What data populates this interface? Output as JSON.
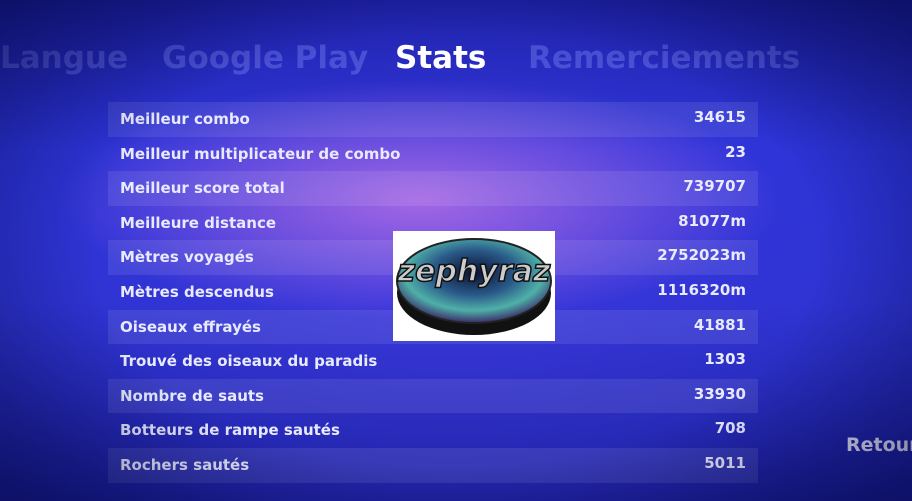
{
  "tabs": [
    "Langue",
    "Google Play",
    "Stats",
    "Remerciements"
  ],
  "active_tab": "Stats",
  "stats": [
    {
      "label": "Meilleur combo",
      "value": "34615"
    },
    {
      "label": "Meilleur multiplicateur de combo",
      "value": "23"
    },
    {
      "label": "Meilleur score total",
      "value": "739707"
    },
    {
      "label": "Meilleure distance",
      "value": "81077m"
    },
    {
      "label": "Mètres voyagés",
      "value": "2752023m"
    },
    {
      "label": "Mètres descendus",
      "value": "1116320m"
    },
    {
      "label": "Oiseaux effrayés",
      "value": "41881"
    },
    {
      "label": "Trouvé des oiseaux du paradis",
      "value": "1303"
    },
    {
      "label": "Nombre de sauts",
      "value": "33930"
    },
    {
      "label": "Botteurs de rampe sautés",
      "value": "708"
    },
    {
      "label": "Rochers sautés",
      "value": "5011"
    }
  ],
  "logo": {
    "text": "zephyraz"
  },
  "back_button": "Retour"
}
